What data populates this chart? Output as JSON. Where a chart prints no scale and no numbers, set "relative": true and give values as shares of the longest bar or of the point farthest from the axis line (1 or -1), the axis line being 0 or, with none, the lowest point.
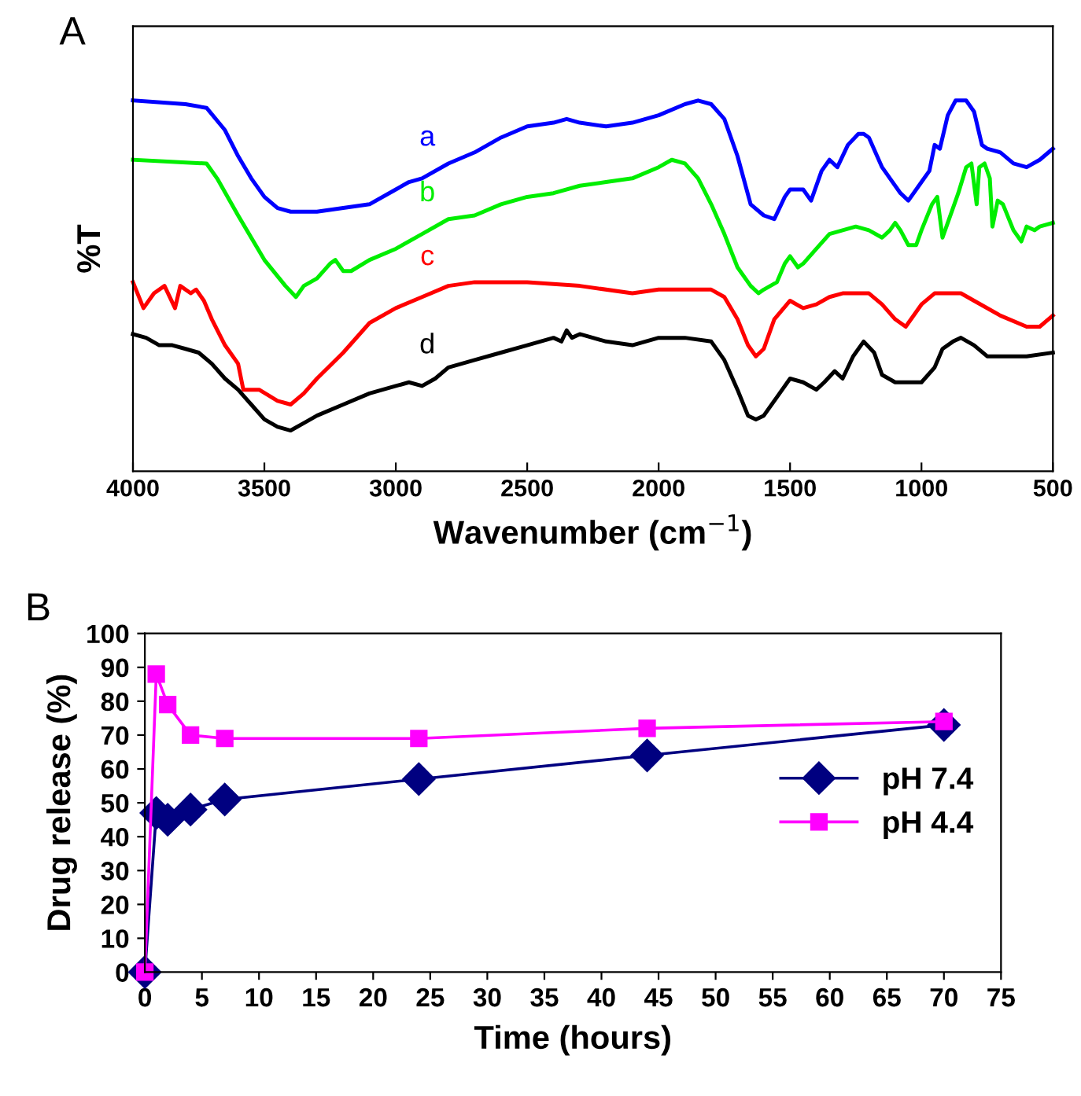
{
  "chart_data": [
    {
      "type": "line",
      "title": "A",
      "ylabel": "%T",
      "xlabel": "Wavenumber (cm$^{−1}$)",
      "relative": true,
      "xlim": [
        4000,
        500
      ],
      "xticks": [
        4000,
        3500,
        3000,
        2500,
        2000,
        1500,
        1000,
        500
      ],
      "tick_labels": "x",
      "grid": false,
      "legend": false,
      "marker": "none",
      "line_style": "solid",
      "series": [
        {
          "name": "a",
          "color": "#0000ff",
          "x": [
            4000,
            3800,
            3720,
            3650,
            3600,
            3550,
            3500,
            3450,
            3400,
            3300,
            3200,
            3100,
            3000,
            2950,
            2900,
            2800,
            2700,
            2600,
            2500,
            2400,
            2350,
            2300,
            2200,
            2100,
            2000,
            1900,
            1850,
            1800,
            1750,
            1700,
            1650,
            1600,
            1560,
            1520,
            1500,
            1450,
            1420,
            1380,
            1350,
            1320,
            1280,
            1240,
            1220,
            1200,
            1150,
            1120,
            1080,
            1050,
            1000,
            970,
            950,
            930,
            900,
            870,
            830,
            800,
            770,
            750,
            700,
            650,
            600,
            550,
            500
          ],
          "values": [
            1.0,
            0.99,
            0.98,
            0.92,
            0.85,
            0.79,
            0.74,
            0.71,
            0.7,
            0.7,
            0.71,
            0.72,
            0.76,
            0.78,
            0.79,
            0.83,
            0.86,
            0.9,
            0.93,
            0.94,
            0.95,
            0.94,
            0.93,
            0.94,
            0.96,
            0.99,
            1.0,
            0.99,
            0.95,
            0.85,
            0.72,
            0.69,
            0.68,
            0.74,
            0.76,
            0.76,
            0.73,
            0.81,
            0.84,
            0.82,
            0.88,
            0.91,
            0.91,
            0.9,
            0.82,
            0.79,
            0.75,
            0.73,
            0.78,
            0.81,
            0.88,
            0.87,
            0.96,
            1.0,
            1.0,
            0.97,
            0.88,
            0.87,
            0.86,
            0.83,
            0.82,
            0.84,
            0.87
          ]
        },
        {
          "name": "b",
          "color": "#00ee00",
          "x": [
            4000,
            3720,
            3680,
            3600,
            3500,
            3420,
            3380,
            3350,
            3300,
            3250,
            3230,
            3200,
            3170,
            3100,
            3000,
            2900,
            2800,
            2700,
            2600,
            2500,
            2400,
            2300,
            2200,
            2100,
            2000,
            1950,
            1900,
            1850,
            1800,
            1750,
            1700,
            1650,
            1620,
            1600,
            1550,
            1520,
            1500,
            1470,
            1450,
            1400,
            1350,
            1300,
            1250,
            1200,
            1150,
            1120,
            1100,
            1080,
            1050,
            1020,
            1000,
            960,
            940,
            920,
            900,
            860,
            830,
            810,
            790,
            780,
            760,
            740,
            730,
            710,
            690,
            650,
            620,
            600,
            570,
            550,
            500
          ],
          "values": [
            0.84,
            0.83,
            0.79,
            0.69,
            0.57,
            0.5,
            0.47,
            0.5,
            0.52,
            0.56,
            0.57,
            0.54,
            0.54,
            0.57,
            0.6,
            0.64,
            0.68,
            0.69,
            0.72,
            0.74,
            0.75,
            0.77,
            0.78,
            0.79,
            0.82,
            0.84,
            0.83,
            0.79,
            0.72,
            0.64,
            0.55,
            0.5,
            0.48,
            0.49,
            0.51,
            0.56,
            0.58,
            0.55,
            0.56,
            0.6,
            0.64,
            0.65,
            0.66,
            0.65,
            0.63,
            0.65,
            0.67,
            0.65,
            0.61,
            0.61,
            0.65,
            0.72,
            0.74,
            0.63,
            0.67,
            0.75,
            0.82,
            0.83,
            0.72,
            0.82,
            0.83,
            0.79,
            0.66,
            0.73,
            0.72,
            0.65,
            0.62,
            0.66,
            0.65,
            0.66,
            0.67
          ]
        },
        {
          "name": "c",
          "color": "#ff0000",
          "x": [
            4000,
            3960,
            3920,
            3880,
            3840,
            3820,
            3780,
            3760,
            3730,
            3700,
            3650,
            3600,
            3580,
            3520,
            3450,
            3400,
            3350,
            3300,
            3200,
            3100,
            3000,
            2900,
            2800,
            2700,
            2500,
            2300,
            2100,
            2000,
            1900,
            1800,
            1750,
            1700,
            1660,
            1630,
            1600,
            1560,
            1500,
            1450,
            1400,
            1350,
            1300,
            1250,
            1200,
            1150,
            1100,
            1060,
            1000,
            950,
            850,
            800,
            700,
            600,
            550,
            500
          ],
          "values": [
            0.51,
            0.44,
            0.48,
            0.5,
            0.44,
            0.5,
            0.48,
            0.49,
            0.46,
            0.41,
            0.34,
            0.29,
            0.22,
            0.22,
            0.19,
            0.18,
            0.21,
            0.25,
            0.32,
            0.4,
            0.44,
            0.47,
            0.5,
            0.51,
            0.51,
            0.5,
            0.48,
            0.49,
            0.49,
            0.49,
            0.47,
            0.41,
            0.34,
            0.31,
            0.33,
            0.41,
            0.46,
            0.44,
            0.45,
            0.47,
            0.48,
            0.48,
            0.48,
            0.45,
            0.41,
            0.39,
            0.45,
            0.48,
            0.48,
            0.46,
            0.42,
            0.39,
            0.39,
            0.42
          ]
        },
        {
          "name": "d",
          "color": "#000000",
          "x": [
            4000,
            3950,
            3900,
            3850,
            3800,
            3750,
            3700,
            3650,
            3600,
            3550,
            3500,
            3450,
            3400,
            3350,
            3300,
            3200,
            3100,
            3000,
            2950,
            2900,
            2850,
            2800,
            2700,
            2600,
            2500,
            2400,
            2370,
            2350,
            2330,
            2300,
            2200,
            2100,
            2000,
            1900,
            1800,
            1750,
            1700,
            1660,
            1630,
            1600,
            1550,
            1500,
            1450,
            1400,
            1370,
            1330,
            1300,
            1260,
            1220,
            1180,
            1150,
            1100,
            1000,
            950,
            920,
            880,
            850,
            800,
            750,
            700,
            600,
            500
          ],
          "values": [
            0.37,
            0.36,
            0.34,
            0.34,
            0.33,
            0.32,
            0.29,
            0.25,
            0.22,
            0.18,
            0.14,
            0.12,
            0.11,
            0.13,
            0.15,
            0.18,
            0.21,
            0.23,
            0.24,
            0.23,
            0.25,
            0.28,
            0.3,
            0.32,
            0.34,
            0.36,
            0.35,
            0.38,
            0.36,
            0.37,
            0.35,
            0.34,
            0.36,
            0.36,
            0.35,
            0.3,
            0.22,
            0.15,
            0.14,
            0.15,
            0.2,
            0.25,
            0.24,
            0.22,
            0.24,
            0.27,
            0.25,
            0.31,
            0.35,
            0.32,
            0.26,
            0.24,
            0.24,
            0.28,
            0.33,
            0.35,
            0.36,
            0.34,
            0.31,
            0.31,
            0.31,
            0.32
          ]
        }
      ]
    },
    {
      "type": "line",
      "title": "B",
      "xlabel": "Time (hours)",
      "ylabel": "Drug release (%)",
      "xlim": [
        0,
        75
      ],
      "ylim": [
        0,
        100
      ],
      "xticks": [
        0,
        5,
        10,
        15,
        20,
        25,
        30,
        35,
        40,
        45,
        50,
        55,
        60,
        65,
        70,
        75
      ],
      "yticks": [
        0,
        10,
        20,
        30,
        40,
        50,
        60,
        70,
        80,
        90,
        100
      ],
      "grid": false,
      "legend": "right",
      "line_style": "solid",
      "x": [
        0,
        1,
        2,
        4,
        7,
        24,
        44,
        70
      ],
      "series": [
        {
          "name": "pH 7.4",
          "color": "#000080",
          "marker": "diamond",
          "values": [
            0,
            47,
            45,
            48,
            51,
            57,
            64,
            73
          ]
        },
        {
          "name": "pH 4.4",
          "color": "#ff00ff",
          "marker": "square",
          "values": [
            0,
            88,
            79,
            70,
            69,
            69,
            72,
            74
          ]
        }
      ]
    }
  ]
}
